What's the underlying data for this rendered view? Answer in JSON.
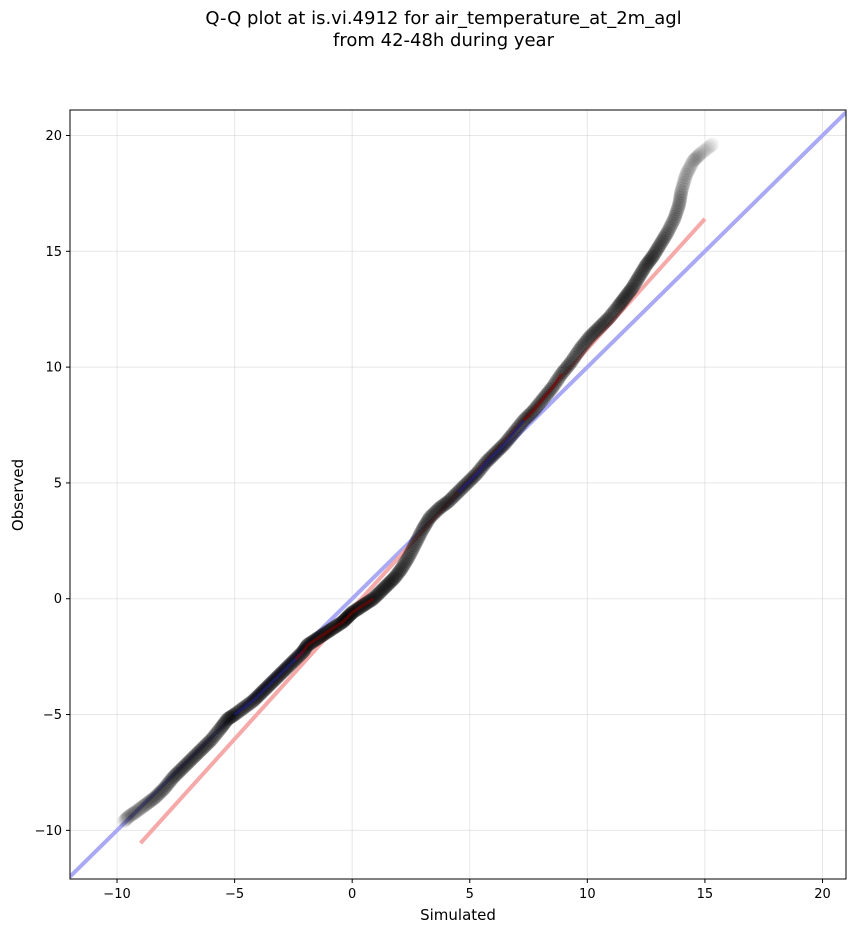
{
  "chart_data": {
    "type": "scatter",
    "title": [
      "Q-Q plot at is.vi.4912 for air_temperature_at_2m_agl",
      "from 42-48h during year"
    ],
    "xlabel": "Simulated",
    "ylabel": "Observed",
    "xlim": [
      -12,
      21
    ],
    "ylim": [
      -12.1,
      21.1
    ],
    "xticks": [
      -10,
      -5,
      0,
      5,
      10,
      15,
      20
    ],
    "yticks": [
      -10,
      -5,
      0,
      5,
      10,
      15,
      20
    ],
    "xtick_labels": [
      "−10",
      "−5",
      "0",
      "5",
      "10",
      "15",
      "20"
    ],
    "ytick_labels": [
      "−10",
      "−5",
      "0",
      "5",
      "10",
      "15",
      "20"
    ],
    "grid": true,
    "colors": {
      "points": "#000000",
      "identity_line": "#a9a9f5",
      "fit_line": "#f5a9a9",
      "central_overlay": "#8b0000",
      "central_overlay_blue": "#1e1e90"
    },
    "series": [
      {
        "kind": "quantile_points",
        "points": [
          [
            -9.7,
            -9.6
          ],
          [
            -9.5,
            -9.4
          ],
          [
            -9.2,
            -9.2
          ],
          [
            -8.8,
            -8.9
          ],
          [
            -8.4,
            -8.6
          ],
          [
            -8.0,
            -8.2
          ],
          [
            -7.6,
            -7.7
          ],
          [
            -7.2,
            -7.3
          ],
          [
            -6.8,
            -6.9
          ],
          [
            -6.4,
            -6.5
          ],
          [
            -6.0,
            -6.1
          ],
          [
            -5.6,
            -5.6
          ],
          [
            -5.3,
            -5.2
          ],
          [
            -5.0,
            -5.0
          ],
          [
            -4.6,
            -4.7
          ],
          [
            -4.2,
            -4.4
          ],
          [
            -3.9,
            -4.1
          ],
          [
            -3.6,
            -3.8
          ],
          [
            -3.3,
            -3.5
          ],
          [
            -3.0,
            -3.2
          ],
          [
            -2.7,
            -2.9
          ],
          [
            -2.4,
            -2.6
          ],
          [
            -2.1,
            -2.3
          ],
          [
            -1.9,
            -2.0
          ],
          [
            -1.6,
            -1.8
          ],
          [
            -1.3,
            -1.6
          ],
          [
            -1.0,
            -1.4
          ],
          [
            -0.7,
            -1.2
          ],
          [
            -0.4,
            -1.0
          ],
          [
            -0.2,
            -0.8
          ],
          [
            0.0,
            -0.6
          ],
          [
            0.3,
            -0.4
          ],
          [
            0.6,
            -0.2
          ],
          [
            0.9,
            0.0
          ],
          [
            1.2,
            0.3
          ],
          [
            1.5,
            0.6
          ],
          [
            1.8,
            0.9
          ],
          [
            2.1,
            1.3
          ],
          [
            2.4,
            1.8
          ],
          [
            2.7,
            2.4
          ],
          [
            3.0,
            3.0
          ],
          [
            3.3,
            3.5
          ],
          [
            3.7,
            3.9
          ],
          [
            4.1,
            4.2
          ],
          [
            4.5,
            4.6
          ],
          [
            4.9,
            5.0
          ],
          [
            5.3,
            5.4
          ],
          [
            5.7,
            5.9
          ],
          [
            6.1,
            6.3
          ],
          [
            6.5,
            6.7
          ],
          [
            6.9,
            7.2
          ],
          [
            7.3,
            7.7
          ],
          [
            7.7,
            8.1
          ],
          [
            8.1,
            8.6
          ],
          [
            8.5,
            9.1
          ],
          [
            8.9,
            9.7
          ],
          [
            9.3,
            10.2
          ],
          [
            9.7,
            10.8
          ],
          [
            10.1,
            11.3
          ],
          [
            10.5,
            11.7
          ],
          [
            10.9,
            12.1
          ],
          [
            11.3,
            12.6
          ],
          [
            11.6,
            13.0
          ],
          [
            11.9,
            13.4
          ],
          [
            12.2,
            13.9
          ],
          [
            12.5,
            14.4
          ],
          [
            12.8,
            14.8
          ],
          [
            13.1,
            15.3
          ],
          [
            13.4,
            15.8
          ],
          [
            13.7,
            16.4
          ],
          [
            13.9,
            17.0
          ],
          [
            14.0,
            17.6
          ],
          [
            14.2,
            18.3
          ],
          [
            14.5,
            18.9
          ],
          [
            14.8,
            19.2
          ],
          [
            15.3,
            19.6
          ]
        ]
      },
      {
        "kind": "identity_line",
        "points": [
          [
            -12,
            -12
          ],
          [
            21,
            21
          ]
        ]
      },
      {
        "kind": "fit_line",
        "points": [
          [
            -9.0,
            -10.55
          ],
          [
            15.0,
            16.4
          ]
        ]
      }
    ]
  }
}
